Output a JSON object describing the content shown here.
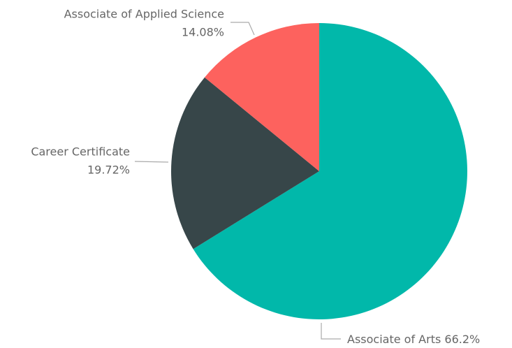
{
  "chart_data": {
    "type": "pie",
    "categories": [
      "Associate of Arts",
      "Career Certificate",
      "Associate of Applied Science"
    ],
    "values": [
      66.2,
      19.72,
      14.08
    ],
    "value_labels": [
      "66.2%",
      "19.72%",
      "14.08%"
    ],
    "colors": [
      "#01B8AA",
      "#374649",
      "#FD625E"
    ],
    "start_angle": 0,
    "direction": "clockwise"
  }
}
